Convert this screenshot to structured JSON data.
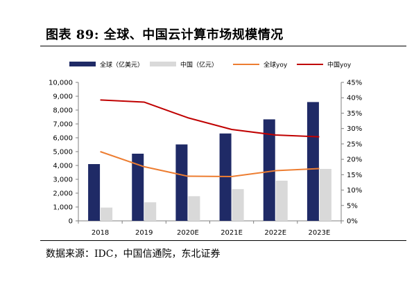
{
  "header": {
    "title": "图表 89: 全球、中国云计算市场规模情况"
  },
  "footer": {
    "source": "数据来源：IDC，中国信通院，东北证券"
  },
  "chart_data": {
    "type": "bar",
    "categories": [
      "2018",
      "2019",
      "2020E",
      "2021E",
      "2022E",
      "2023E"
    ],
    "series": [
      {
        "name": "全球（亿美元）",
        "type": "bar",
        "axis": "left",
        "color": "#1f2a66",
        "values": [
          4100,
          4850,
          5520,
          6310,
          7330,
          8580
        ]
      },
      {
        "name": "中国（亿元）",
        "type": "bar",
        "axis": "left",
        "color": "#d9d9d9",
        "values": [
          960,
          1340,
          1780,
          2290,
          2900,
          3750
        ]
      },
      {
        "name": "全球yoy",
        "type": "line",
        "axis": "right",
        "color": "#ed7d31",
        "values": [
          0.225,
          0.176,
          0.145,
          0.144,
          0.163,
          0.17
        ]
      },
      {
        "name": "中国yoy",
        "type": "line",
        "axis": "right",
        "color": "#c00000",
        "values": [
          0.393,
          0.386,
          0.335,
          0.297,
          0.279,
          0.273
        ]
      }
    ],
    "y_left": {
      "range": [
        0,
        10000
      ],
      "ticks": [
        0,
        1000,
        2000,
        3000,
        4000,
        5000,
        6000,
        7000,
        8000,
        9000,
        10000
      ],
      "tick_labels": [
        "0",
        "1,000",
        "2,000",
        "3,000",
        "4,000",
        "5,000",
        "6,000",
        "7,000",
        "8,000",
        "9,000",
        "10,000"
      ]
    },
    "y_right": {
      "range": [
        0,
        0.45
      ],
      "ticks": [
        0,
        0.05,
        0.1,
        0.15,
        0.2,
        0.25,
        0.3,
        0.35,
        0.4,
        0.45
      ],
      "tick_labels": [
        "0%",
        "5%",
        "10%",
        "15%",
        "20%",
        "25%",
        "30%",
        "35%",
        "40%",
        "45%"
      ]
    },
    "legend_position": "top",
    "grid": false
  }
}
